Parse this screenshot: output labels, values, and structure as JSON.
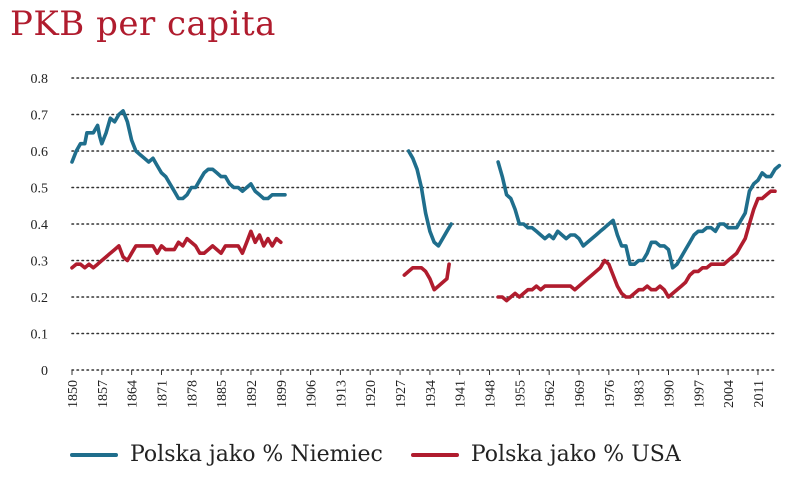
{
  "chart_data": {
    "type": "line",
    "title": "PKB per capita",
    "xlabel": "",
    "ylabel": "",
    "xlim": [
      1850,
      2015
    ],
    "ylim": [
      0,
      0.8
    ],
    "grid": "dotted horizontal",
    "legend_position": "bottom",
    "yticks": [
      "0",
      "0.1",
      "0.2",
      "0.3",
      "0.4",
      "0.5",
      "0.6",
      "0.7",
      "0.8"
    ],
    "xticks": [
      "1850",
      "1857",
      "1864",
      "1871",
      "1878",
      "1885",
      "1892",
      "1899",
      "1906",
      "1913",
      "1920",
      "1927",
      "1934",
      "1941",
      "1948",
      "1955",
      "1962",
      "1969",
      "1976",
      "1983",
      "1990",
      "1997",
      "2004",
      "2011"
    ],
    "series": [
      {
        "name": "Polska jako % Niemiec",
        "color": "#1f6e8c",
        "segments": [
          [
            [
              1850,
              0.57
            ],
            [
              1851,
              0.6
            ],
            [
              1852,
              0.62
            ],
            [
              1853,
              0.62
            ],
            [
              1853.5,
              0.65
            ],
            [
              1855,
              0.65
            ],
            [
              1856,
              0.67
            ],
            [
              1856.5,
              0.64
            ],
            [
              1857,
              0.62
            ],
            [
              1858,
              0.65
            ],
            [
              1859,
              0.69
            ],
            [
              1860,
              0.68
            ],
            [
              1861,
              0.7
            ],
            [
              1862,
              0.71
            ],
            [
              1863,
              0.68
            ],
            [
              1864,
              0.63
            ],
            [
              1865,
              0.6
            ],
            [
              1866,
              0.59
            ],
            [
              1867,
              0.58
            ],
            [
              1868,
              0.57
            ],
            [
              1869,
              0.58
            ],
            [
              1870,
              0.56
            ],
            [
              1871,
              0.54
            ],
            [
              1872,
              0.53
            ],
            [
              1873,
              0.51
            ],
            [
              1874,
              0.49
            ],
            [
              1875,
              0.47
            ],
            [
              1876,
              0.47
            ],
            [
              1877,
              0.48
            ],
            [
              1878,
              0.5
            ],
            [
              1879,
              0.5
            ],
            [
              1880,
              0.52
            ],
            [
              1881,
              0.54
            ],
            [
              1882,
              0.55
            ],
            [
              1883,
              0.55
            ],
            [
              1884,
              0.54
            ],
            [
              1885,
              0.53
            ],
            [
              1886,
              0.53
            ],
            [
              1887,
              0.51
            ],
            [
              1888,
              0.5
            ],
            [
              1889,
              0.5
            ],
            [
              1890,
              0.49
            ],
            [
              1891,
              0.5
            ],
            [
              1892,
              0.51
            ],
            [
              1893,
              0.49
            ],
            [
              1894,
              0.48
            ],
            [
              1895,
              0.47
            ],
            [
              1896,
              0.47
            ],
            [
              1897,
              0.48
            ],
            [
              1898,
              0.48
            ],
            [
              1899,
              0.48
            ],
            [
              1900,
              0.48
            ]
          ],
          [
            [
              1929,
              0.6
            ],
            [
              1930,
              0.58
            ],
            [
              1931,
              0.55
            ],
            [
              1932,
              0.5
            ],
            [
              1933,
              0.43
            ],
            [
              1934,
              0.38
            ],
            [
              1935,
              0.35
            ],
            [
              1936,
              0.34
            ],
            [
              1937,
              0.36
            ],
            [
              1938,
              0.38
            ],
            [
              1939,
              0.4
            ]
          ],
          [
            [
              1950,
              0.57
            ],
            [
              1951,
              0.53
            ],
            [
              1952,
              0.48
            ],
            [
              1953,
              0.47
            ],
            [
              1954,
              0.44
            ],
            [
              1955,
              0.4
            ],
            [
              1956,
              0.4
            ],
            [
              1957,
              0.39
            ],
            [
              1958,
              0.39
            ],
            [
              1959,
              0.38
            ],
            [
              1960,
              0.37
            ],
            [
              1961,
              0.36
            ],
            [
              1962,
              0.37
            ],
            [
              1963,
              0.36
            ],
            [
              1964,
              0.38
            ],
            [
              1965,
              0.37
            ],
            [
              1966,
              0.36
            ],
            [
              1967,
              0.37
            ],
            [
              1968,
              0.37
            ],
            [
              1969,
              0.36
            ],
            [
              1970,
              0.34
            ],
            [
              1971,
              0.35
            ],
            [
              1972,
              0.36
            ],
            [
              1973,
              0.37
            ],
            [
              1974,
              0.38
            ],
            [
              1975,
              0.39
            ],
            [
              1976,
              0.4
            ],
            [
              1977,
              0.41
            ],
            [
              1978,
              0.37
            ],
            [
              1979,
              0.34
            ],
            [
              1980,
              0.34
            ],
            [
              1981,
              0.29
            ],
            [
              1982,
              0.29
            ],
            [
              1983,
              0.3
            ],
            [
              1984,
              0.3
            ],
            [
              1985,
              0.32
            ],
            [
              1986,
              0.35
            ],
            [
              1987,
              0.35
            ],
            [
              1988,
              0.34
            ],
            [
              1989,
              0.34
            ],
            [
              1990,
              0.33
            ],
            [
              1991,
              0.28
            ],
            [
              1992,
              0.29
            ],
            [
              1993,
              0.31
            ],
            [
              1994,
              0.33
            ],
            [
              1995,
              0.35
            ],
            [
              1996,
              0.37
            ],
            [
              1997,
              0.38
            ],
            [
              1998,
              0.38
            ],
            [
              1999,
              0.39
            ],
            [
              2000,
              0.39
            ],
            [
              2001,
              0.38
            ],
            [
              2002,
              0.4
            ],
            [
              2003,
              0.4
            ],
            [
              2004,
              0.39
            ],
            [
              2005,
              0.39
            ],
            [
              2006,
              0.39
            ],
            [
              2007,
              0.41
            ],
            [
              2008,
              0.43
            ],
            [
              2009,
              0.49
            ],
            [
              2010,
              0.51
            ],
            [
              2011,
              0.52
            ],
            [
              2012,
              0.54
            ],
            [
              2013,
              0.53
            ],
            [
              2014,
              0.53
            ],
            [
              2015,
              0.55
            ],
            [
              2016,
              0.56
            ]
          ]
        ]
      },
      {
        "name": "Polska jako % USA",
        "color": "#b01c2e",
        "segments": [
          [
            [
              1850,
              0.28
            ],
            [
              1851,
              0.29
            ],
            [
              1852,
              0.29
            ],
            [
              1853,
              0.28
            ],
            [
              1854,
              0.29
            ],
            [
              1855,
              0.28
            ],
            [
              1856,
              0.29
            ],
            [
              1857,
              0.3
            ],
            [
              1858,
              0.31
            ],
            [
              1859,
              0.32
            ],
            [
              1860,
              0.33
            ],
            [
              1861,
              0.34
            ],
            [
              1862,
              0.31
            ],
            [
              1863,
              0.3
            ],
            [
              1864,
              0.32
            ],
            [
              1865,
              0.34
            ],
            [
              1866,
              0.34
            ],
            [
              1867,
              0.34
            ],
            [
              1868,
              0.34
            ],
            [
              1869,
              0.34
            ],
            [
              1870,
              0.32
            ],
            [
              1871,
              0.34
            ],
            [
              1872,
              0.33
            ],
            [
              1873,
              0.33
            ],
            [
              1874,
              0.33
            ],
            [
              1875,
              0.35
            ],
            [
              1876,
              0.34
            ],
            [
              1877,
              0.36
            ],
            [
              1878,
              0.35
            ],
            [
              1879,
              0.34
            ],
            [
              1880,
              0.32
            ],
            [
              1881,
              0.32
            ],
            [
              1882,
              0.33
            ],
            [
              1883,
              0.34
            ],
            [
              1884,
              0.33
            ],
            [
              1885,
              0.32
            ],
            [
              1886,
              0.34
            ],
            [
              1887,
              0.34
            ],
            [
              1888,
              0.34
            ],
            [
              1889,
              0.34
            ],
            [
              1890,
              0.32
            ],
            [
              1891,
              0.35
            ],
            [
              1892,
              0.38
            ],
            [
              1893,
              0.35
            ],
            [
              1894,
              0.37
            ],
            [
              1895,
              0.34
            ],
            [
              1896,
              0.36
            ],
            [
              1897,
              0.34
            ],
            [
              1898,
              0.36
            ],
            [
              1899,
              0.35
            ]
          ],
          [
            [
              1928,
              0.26
            ],
            [
              1929,
              0.27
            ],
            [
              1930,
              0.28
            ],
            [
              1931,
              0.28
            ],
            [
              1932,
              0.28
            ],
            [
              1933,
              0.27
            ],
            [
              1934,
              0.25
            ],
            [
              1935,
              0.22
            ],
            [
              1936,
              0.23
            ],
            [
              1937,
              0.24
            ],
            [
              1938,
              0.25
            ],
            [
              1938.5,
              0.29
            ]
          ],
          [
            [
              1950,
              0.2
            ],
            [
              1951,
              0.2
            ],
            [
              1952,
              0.19
            ],
            [
              1953,
              0.2
            ],
            [
              1954,
              0.21
            ],
            [
              1955,
              0.2
            ],
            [
              1956,
              0.21
            ],
            [
              1957,
              0.22
            ],
            [
              1958,
              0.22
            ],
            [
              1959,
              0.23
            ],
            [
              1960,
              0.22
            ],
            [
              1961,
              0.23
            ],
            [
              1962,
              0.23
            ],
            [
              1963,
              0.23
            ],
            [
              1964,
              0.23
            ],
            [
              1965,
              0.23
            ],
            [
              1966,
              0.23
            ],
            [
              1967,
              0.23
            ],
            [
              1968,
              0.22
            ],
            [
              1969,
              0.23
            ],
            [
              1970,
              0.24
            ],
            [
              1971,
              0.25
            ],
            [
              1972,
              0.26
            ],
            [
              1973,
              0.27
            ],
            [
              1974,
              0.28
            ],
            [
              1975,
              0.3
            ],
            [
              1976,
              0.29
            ],
            [
              1977,
              0.26
            ],
            [
              1978,
              0.23
            ],
            [
              1979,
              0.21
            ],
            [
              1980,
              0.2
            ],
            [
              1981,
              0.2
            ],
            [
              1982,
              0.21
            ],
            [
              1983,
              0.22
            ],
            [
              1984,
              0.22
            ],
            [
              1985,
              0.23
            ],
            [
              1986,
              0.22
            ],
            [
              1987,
              0.22
            ],
            [
              1988,
              0.23
            ],
            [
              1989,
              0.22
            ],
            [
              1990,
              0.2
            ],
            [
              1991,
              0.21
            ],
            [
              1992,
              0.22
            ],
            [
              1993,
              0.23
            ],
            [
              1994,
              0.24
            ],
            [
              1995,
              0.26
            ],
            [
              1996,
              0.27
            ],
            [
              1997,
              0.27
            ],
            [
              1998,
              0.28
            ],
            [
              1999,
              0.28
            ],
            [
              2000,
              0.29
            ],
            [
              2001,
              0.29
            ],
            [
              2002,
              0.29
            ],
            [
              2003,
              0.29
            ],
            [
              2004,
              0.3
            ],
            [
              2005,
              0.31
            ],
            [
              2006,
              0.32
            ],
            [
              2007,
              0.34
            ],
            [
              2008,
              0.36
            ],
            [
              2009,
              0.4
            ],
            [
              2010,
              0.44
            ],
            [
              2011,
              0.47
            ],
            [
              2012,
              0.47
            ],
            [
              2013,
              0.48
            ],
            [
              2014,
              0.49
            ],
            [
              2015,
              0.49
            ]
          ]
        ]
      }
    ]
  }
}
